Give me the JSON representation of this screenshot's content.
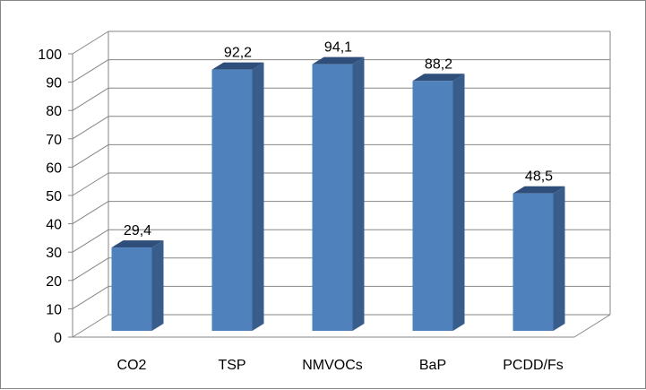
{
  "chart_data": {
    "type": "bar",
    "categories": [
      "CO2",
      "TSP",
      "NMVOCs",
      "BaP",
      "PCDD/Fs"
    ],
    "values": [
      29.4,
      92.2,
      94.1,
      88.2,
      48.5
    ],
    "data_labels": [
      "29,4",
      "92,2",
      "94,1",
      "88,2",
      "48,5"
    ],
    "y_ticks": [
      "0",
      "10",
      "20",
      "30",
      "40",
      "50",
      "60",
      "70",
      "80",
      "90",
      "100"
    ],
    "ylim": [
      0,
      100
    ],
    "grid": true,
    "legend": "none",
    "colors": {
      "bar_front": "#4f81bd",
      "bar_side": "#385d8a",
      "bar_top": "#2f4f7a",
      "gridline": "#868686",
      "axis": "#868686"
    }
  }
}
